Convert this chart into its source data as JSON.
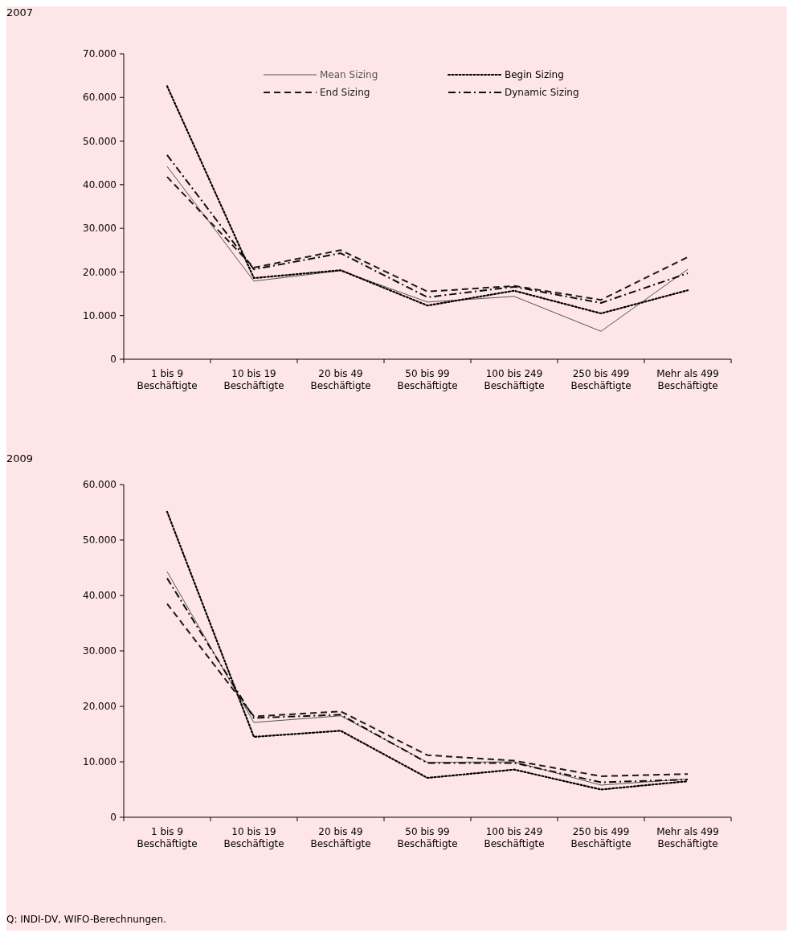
{
  "chart_data": [
    {
      "type": "line",
      "title": "2007",
      "categories": [
        "1 bis 9 Beschäftigte",
        "10 bis 19 Beschäftigte",
        "20 bis 49 Beschäftigte",
        "50 bis 99 Beschäftigte",
        "100 bis 249 Beschäftigte",
        "250 bis 499 Beschäftigte",
        "Mehr als 499 Beschäftigte"
      ],
      "series": [
        {
          "name": "Mean Sizing",
          "color": "#555555",
          "line_style": "solid",
          "values": [
            44200,
            17900,
            20300,
            13100,
            14400,
            6400,
            20600
          ]
        },
        {
          "name": "Begin Sizing",
          "color": "#000000",
          "line_style": "dotted",
          "values": [
            62600,
            18600,
            20400,
            12300,
            15700,
            10500,
            15800
          ]
        },
        {
          "name": "End Sizing",
          "color": "#1a1a1a",
          "line_style": "dashed",
          "values": [
            41800,
            21000,
            25000,
            15500,
            16800,
            13600,
            23400
          ]
        },
        {
          "name": "Dynamic Sizing",
          "color": "#0d0d0d",
          "line_style": "dashdot",
          "values": [
            46800,
            20600,
            24300,
            14200,
            16600,
            12900,
            19700
          ]
        }
      ],
      "ylim": [
        0,
        70000
      ],
      "yticks": [
        0,
        {
          "value": 10000,
          "label": "10.000"
        },
        {
          "value": 20000,
          "label": "20.000"
        },
        {
          "value": 30000,
          "label": "30.000"
        },
        {
          "value": 40000,
          "label": "40.000"
        },
        {
          "value": 50000,
          "label": "50.000"
        },
        {
          "value": 60000,
          "label": "60.000"
        },
        {
          "value": 70000,
          "label": "70.000"
        }
      ],
      "grid": false,
      "legend": "top",
      "marker": "none"
    },
    {
      "type": "line",
      "title": "2009",
      "categories": [
        "1 bis 9 Beschäftigte",
        "10 bis 19 Beschäftigte",
        "20 bis 49 Beschäftigte",
        "50 bis 99 Beschäftigte",
        "100 bis 249 Beschäftigte",
        "250 bis 499 Beschäftigte",
        "Mehr als 499 Beschäftigte"
      ],
      "series": [
        {
          "color": "#555555",
          "line_style": "solid",
          "values": [
            44300,
            17100,
            18300,
            9900,
            10000,
            5800,
            6900
          ]
        },
        {
          "color": "#000000",
          "line_style": "dotted",
          "values": [
            55100,
            14500,
            15600,
            7100,
            8600,
            5000,
            6500
          ]
        },
        {
          "color": "#1a1a1a",
          "line_style": "dashed",
          "values": [
            38500,
            18200,
            19100,
            11200,
            10200,
            7400,
            7800
          ]
        },
        {
          "color": "#0d0d0d",
          "line_style": "dashdot",
          "values": [
            43100,
            17900,
            18500,
            9800,
            9800,
            6300,
            6800
          ]
        }
      ],
      "ylim": [
        0,
        60000
      ],
      "yticks": [
        0,
        {
          "value": 10000,
          "label": "10.000"
        },
        {
          "value": 20000,
          "label": "20.000"
        },
        {
          "value": 30000,
          "label": "30.000"
        },
        {
          "value": 40000,
          "label": "40.000"
        },
        {
          "value": 50000,
          "label": "50.000"
        },
        {
          "value": 60000,
          "label": "60.000"
        }
      ],
      "grid": false,
      "legend": false,
      "marker": "none",
      "annotations": [
        "Q: INDI-DV, WIFO-Berechnungen."
      ]
    }
  ]
}
